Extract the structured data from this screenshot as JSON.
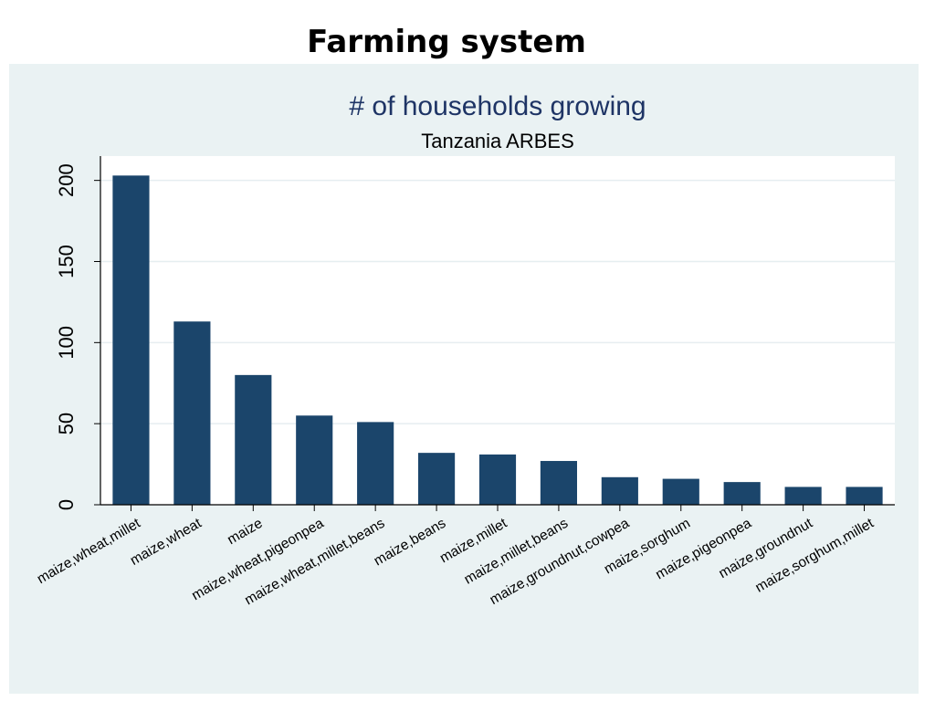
{
  "slide": {
    "title": "Farming system"
  },
  "chart_data": {
    "type": "bar",
    "title": "# of households growing",
    "subtitle": "Tanzania ARBES",
    "xlabel": "",
    "ylabel": "",
    "categories": [
      "maize,wheat,millet",
      "maize,wheat",
      "maize",
      "maize,wheat,pigeonpea",
      "maize,wheat,millet,beans",
      "maize,beans",
      "maize,millet",
      "maize,millet,beans",
      "maize,groundnut,cowpea",
      "maize,sorghum",
      "maize,pigeonpea",
      "maize,groundnut",
      "maize,sorghum,millet"
    ],
    "values": [
      203,
      113,
      80,
      55,
      51,
      32,
      31,
      27,
      17,
      16,
      14,
      11,
      11
    ],
    "ylim": [
      0,
      215
    ],
    "yticks": [
      0,
      50,
      100,
      150,
      200
    ],
    "grid": true,
    "legend": "none",
    "colors": {
      "bar": "#1b456b",
      "title": "#1e3465",
      "panel": "#eaf2f3",
      "plot_bg": "#ffffff",
      "grid": "#e6eef0"
    }
  }
}
